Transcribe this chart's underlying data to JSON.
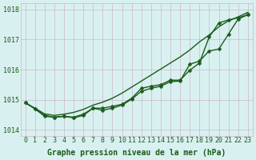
{
  "x": [
    0,
    1,
    2,
    3,
    4,
    5,
    6,
    7,
    8,
    9,
    10,
    11,
    12,
    13,
    14,
    15,
    16,
    17,
    18,
    19,
    20,
    21,
    22,
    23
  ],
  "line1_smooth": [
    1014.9,
    1014.72,
    1014.53,
    1014.48,
    1014.52,
    1014.58,
    1014.68,
    1014.82,
    1014.92,
    1015.05,
    1015.22,
    1015.42,
    1015.62,
    1015.82,
    1016.02,
    1016.22,
    1016.42,
    1016.65,
    1016.92,
    1017.15,
    1017.42,
    1017.62,
    1017.75,
    1017.9
  ],
  "line2_markers": [
    1014.9,
    1014.7,
    1014.48,
    1014.42,
    1014.45,
    1014.42,
    1014.52,
    1014.72,
    1014.72,
    1014.78,
    1014.85,
    1015.05,
    1015.38,
    1015.45,
    1015.5,
    1015.65,
    1015.65,
    1015.98,
    1016.22,
    1017.08,
    1017.55,
    1017.65,
    1017.72,
    1017.82
  ],
  "line3_markers": [
    1014.9,
    1014.7,
    1014.45,
    1014.42,
    1014.45,
    1014.4,
    1014.48,
    1014.72,
    1014.65,
    1014.72,
    1014.82,
    1015.02,
    1015.28,
    1015.38,
    1015.45,
    1015.6,
    1015.62,
    1016.18,
    1016.28,
    1016.62,
    1016.68,
    1017.18,
    1017.68,
    1017.82
  ],
  "line_color": "#1a5c1a",
  "bg_color": "#d9f0f0",
  "grid_color": "#c8b8c8",
  "xlabel": "Graphe pression niveau de la mer (hPa)",
  "ylim": [
    1013.8,
    1018.2
  ],
  "yticks": [
    1014,
    1015,
    1016,
    1017,
    1018
  ],
  "xticks": [
    0,
    1,
    2,
    3,
    4,
    5,
    6,
    7,
    8,
    9,
    10,
    11,
    12,
    13,
    14,
    15,
    16,
    17,
    18,
    19,
    20,
    21,
    22,
    23
  ],
  "xlabel_fontsize": 7,
  "tick_fontsize": 6,
  "line_width": 1.0,
  "marker_size": 2.5
}
